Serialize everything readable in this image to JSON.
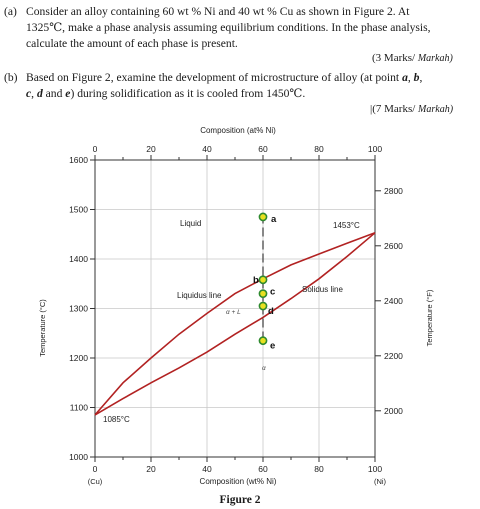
{
  "question_a": {
    "number": "(a)",
    "line1": "Consider an alloy containing 60 wt % Ni and 40 wt % Cu as shown in Figure 2. At",
    "line2": "1325℃, make a phase analysis assuming equilibrium conditions. In the phase analysis,",
    "line3": "calculate the amount of each phase is present.",
    "marks": "(3 Marks/ ",
    "marks_malay": "Markah)"
  },
  "question_b": {
    "number": "(b)",
    "line1_start": "Based on Figure 2, examine the development of microstructure of alloy (at point ",
    "p_a": "a",
    "sep1": ", ",
    "p_b": "b",
    "sep2": ",",
    "line2_c": "c",
    "sep3": ", ",
    "line2_d": "d",
    "line2_and": " and ",
    "line2_e": "e",
    "line2_rest": ") during solidification as it is cooled from 1450℃.",
    "marks": "|(7 Marks/ ",
    "marks_malay": "Markah)"
  },
  "figure": {
    "caption": "Figure 2",
    "top_axis_title": "Composition (at% Ni)",
    "bottom_axis_title": "Composition (wt% Ni)",
    "left_axis_title": "Temperature (°C)",
    "right_axis_title": "Temperature (°F)",
    "left_endpoint": "(Cu)",
    "right_endpoint": "(Ni)",
    "region_liquid": "Liquid",
    "region_mix": "α + L",
    "region_mix_below": "α",
    "liquidus_label": "Liquidus line",
    "solidus_label": "Solidus line",
    "ni_melt": "1453°C",
    "cu_melt": "1085°C",
    "point_labels": [
      "a",
      "b",
      "c",
      "d",
      "e"
    ]
  },
  "chart_data": {
    "type": "line",
    "xlabel": "Composition (wt% Ni)",
    "ylabel": "Temperature (°C)",
    "xlim": [
      0,
      100
    ],
    "ylim": [
      1000,
      1600
    ],
    "x_ticks": [
      0,
      20,
      40,
      60,
      80,
      100
    ],
    "y_ticks": [
      1000,
      1100,
      1200,
      1300,
      1400,
      1500,
      1600
    ],
    "top_x_ticks": [
      0,
      20,
      40,
      60,
      80,
      100
    ],
    "top_x_tick_positions_wt": [
      0,
      20,
      40,
      60,
      80,
      100
    ],
    "right_y_ticks": [
      2000,
      2200,
      2400,
      2600,
      2800
    ],
    "grid": true,
    "series": [
      {
        "name": "Liquidus line",
        "x": [
          0,
          10,
          20,
          30,
          40,
          50,
          60,
          70,
          80,
          90,
          100
        ],
        "y": [
          1085,
          1150,
          1200,
          1248,
          1290,
          1330,
          1360,
          1388,
          1410,
          1432,
          1453
        ]
      },
      {
        "name": "Solidus line",
        "x": [
          0,
          10,
          20,
          30,
          40,
          50,
          60,
          70,
          80,
          90,
          100
        ],
        "y": [
          1085,
          1118,
          1150,
          1180,
          1212,
          1248,
          1282,
          1320,
          1360,
          1405,
          1453
        ]
      }
    ],
    "points": [
      {
        "label": "a",
        "x": 60,
        "y": 1485
      },
      {
        "label": "b",
        "x": 60,
        "y": 1358
      },
      {
        "label": "c",
        "x": 60,
        "y": 1330
      },
      {
        "label": "d",
        "x": 60,
        "y": 1305
      },
      {
        "label": "e",
        "x": 60,
        "y": 1235
      }
    ],
    "colors": {
      "curve": "#b22222",
      "point_fill": "#e8e020",
      "point_edge": "#2f8a2f"
    }
  }
}
